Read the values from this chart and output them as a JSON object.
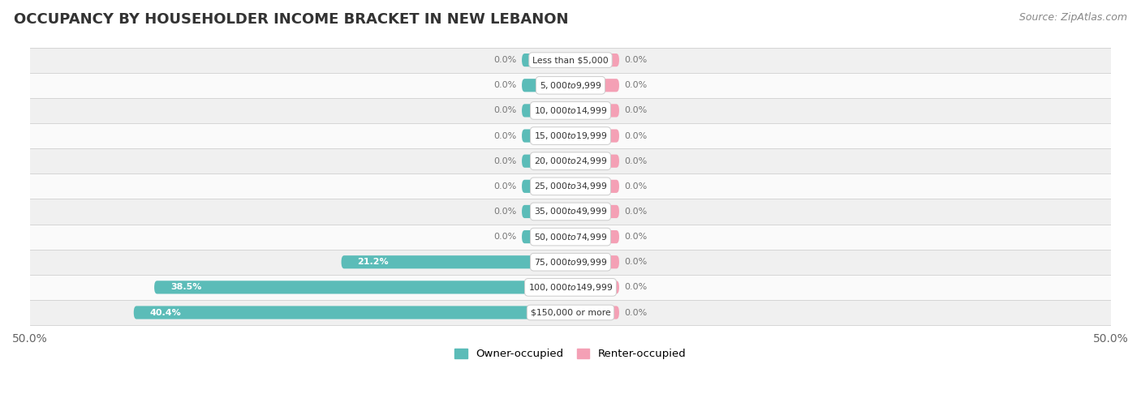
{
  "title": "OCCUPANCY BY HOUSEHOLDER INCOME BRACKET IN NEW LEBANON",
  "source": "Source: ZipAtlas.com",
  "categories": [
    "Less than $5,000",
    "$5,000 to $9,999",
    "$10,000 to $14,999",
    "$15,000 to $19,999",
    "$20,000 to $24,999",
    "$25,000 to $34,999",
    "$35,000 to $49,999",
    "$50,000 to $74,999",
    "$75,000 to $99,999",
    "$100,000 to $149,999",
    "$150,000 or more"
  ],
  "owner_values": [
    0.0,
    0.0,
    0.0,
    0.0,
    0.0,
    0.0,
    0.0,
    0.0,
    21.2,
    38.5,
    40.4
  ],
  "renter_values": [
    0.0,
    0.0,
    0.0,
    0.0,
    0.0,
    0.0,
    0.0,
    0.0,
    0.0,
    0.0,
    0.0
  ],
  "owner_color": "#5bbcb8",
  "renter_color": "#f4a0b5",
  "row_bg_odd": "#f0f0f0",
  "row_bg_even": "#fafafa",
  "axis_range": 50.0,
  "stub_size": 4.5,
  "title_fontsize": 13,
  "source_fontsize": 9,
  "tick_fontsize": 10,
  "bar_height": 0.52,
  "legend_owner": "Owner-occupied",
  "legend_renter": "Renter-occupied",
  "value_label_threshold": 3.0
}
